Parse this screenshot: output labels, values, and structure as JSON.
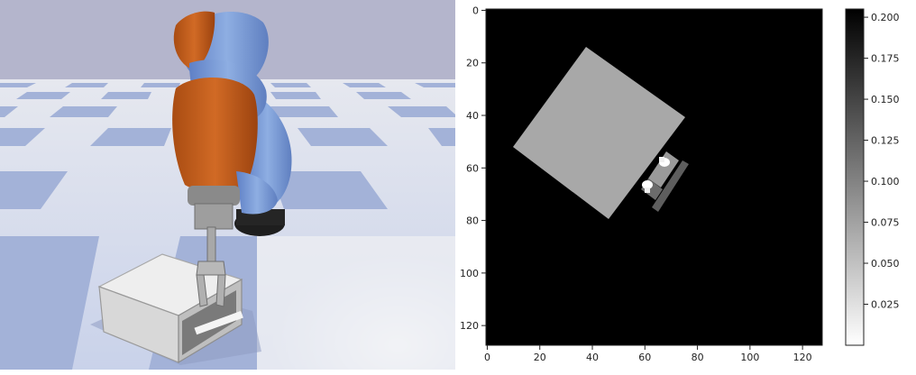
{
  "depth_map": {
    "x_ticks": [
      "0",
      "20",
      "40",
      "60",
      "80",
      "100",
      "120"
    ],
    "y_ticks": [
      "0",
      "20",
      "40",
      "60",
      "80",
      "100",
      "120"
    ],
    "colorbar_ticks": [
      "0.200",
      "0.175",
      "0.150",
      "0.125",
      "0.100",
      "0.075",
      "0.050",
      "0.025"
    ],
    "colorbar_range": [
      0.0,
      0.205
    ],
    "colormap": "gray_r",
    "image_size": [
      128,
      128
    ],
    "background_value": 0.205,
    "box_value": 0.085,
    "gripper_value": 0.16,
    "fingertip_value": 0.0
  },
  "colors": {
    "sky": "#b4b5cc",
    "floor_light": "#e9eaee",
    "floor_dark": "#a3b2d8",
    "robot_blue": "#7e9fd8",
    "robot_orange": "#c9621e",
    "box": "#dedede"
  }
}
